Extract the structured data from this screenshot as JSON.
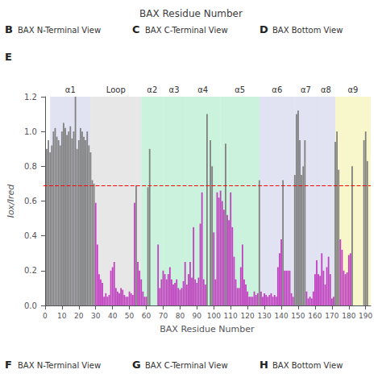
{
  "chart_data": {
    "type": "bar",
    "title": "BAX Residue Number",
    "xlabel": "BAX Residue Number",
    "ylabel": "Iox/Ired",
    "x": [
      1,
      2,
      3,
      4,
      5,
      6,
      7,
      8,
      9,
      10,
      11,
      12,
      13,
      14,
      15,
      16,
      17,
      18,
      19,
      20,
      21,
      22,
      23,
      24,
      25,
      26,
      27,
      28,
      29,
      30,
      31,
      32,
      33,
      34,
      35,
      36,
      37,
      38,
      39,
      40,
      41,
      42,
      43,
      44,
      45,
      46,
      47,
      48,
      49,
      50,
      51,
      52,
      53,
      54,
      55,
      56,
      57,
      58,
      59,
      60,
      61,
      62,
      63,
      64,
      65,
      66,
      67,
      68,
      69,
      70,
      71,
      72,
      73,
      74,
      75,
      76,
      77,
      78,
      79,
      80,
      81,
      82,
      83,
      84,
      85,
      86,
      87,
      88,
      89,
      90,
      91,
      92,
      93,
      94,
      95,
      96,
      97,
      98,
      99,
      100,
      101,
      102,
      103,
      104,
      105,
      106,
      107,
      108,
      109,
      110,
      111,
      112,
      113,
      114,
      115,
      116,
      117,
      118,
      119,
      120,
      121,
      122,
      123,
      124,
      125,
      126,
      127,
      128,
      129,
      130,
      131,
      132,
      133,
      134,
      135,
      136,
      137,
      138,
      139,
      140,
      141,
      142,
      143,
      144,
      145,
      146,
      147,
      148,
      149,
      150,
      151,
      152,
      153,
      154,
      155,
      156,
      157,
      158,
      159,
      160,
      161,
      162,
      163,
      164,
      165,
      166,
      167,
      168,
      169,
      170,
      171,
      172,
      173,
      174,
      175,
      176,
      177,
      178,
      179,
      180,
      181,
      182,
      183,
      184,
      185,
      186,
      187,
      188,
      189,
      190,
      191,
      192
    ],
    "values": [
      0.9,
      0.95,
      0.88,
      0.92,
      1.0,
      1.02,
      0.97,
      0.95,
      0.92,
      1.0,
      1.05,
      1.02,
      0.98,
      1.0,
      1.03,
      0.96,
      1.0,
      1.2,
      0.9,
      0.95,
      1.02,
      1.0,
      0.97,
      0.95,
      1.0,
      0.92,
      0.88,
      0.72,
      0.7,
      0.59,
      0.35,
      0.18,
      0.15,
      0.13,
      0.05,
      0.07,
      0.05,
      0.06,
      0.2,
      0.22,
      0.25,
      0.1,
      0.08,
      0.07,
      0.1,
      0.09,
      0.06,
      0.05,
      0.05,
      0.08,
      0.07,
      0.06,
      0.59,
      0.69,
      0.25,
      0.2,
      0.15,
      0.08,
      0.05,
      0.05,
      0.68,
      0.9,
      0.0,
      0.0,
      0.0,
      0.0,
      0.35,
      0.1,
      0.15,
      0.2,
      0.18,
      0.15,
      0.18,
      0.22,
      0.15,
      0.12,
      0.13,
      0.15,
      0.1,
      0.09,
      0.1,
      0.14,
      0.25,
      0.12,
      0.18,
      0.25,
      0.16,
      0.45,
      0.15,
      0.13,
      0.16,
      0.47,
      0.65,
      0.15,
      0.12,
      1.1,
      0.0,
      0.95,
      0.8,
      0.42,
      0.15,
      0.65,
      0.62,
      0.66,
      0.6,
      0.55,
      0.93,
      0.52,
      0.49,
      0.65,
      0.45,
      0.28,
      0.15,
      0.1,
      0.1,
      0.22,
      0.35,
      0.15,
      0.12,
      0.08,
      0.05,
      0.05,
      0.05,
      0.08,
      0.06,
      0.07,
      0.72,
      0.08,
      0.05,
      0.07,
      0.06,
      0.05,
      0.06,
      0.07,
      0.05,
      0.06,
      0.05,
      0.22,
      0.3,
      0.38,
      0.72,
      0.2,
      0.2,
      0.2,
      0.2,
      0.07,
      0.05,
      0.75,
      1.1,
      1.12,
      0.95,
      0.75,
      0.8,
      0.95,
      0.08,
      0.04,
      0.05,
      0.04,
      0.08,
      0.18,
      0.26,
      0.18,
      0.17,
      0.3,
      0.2,
      0.12,
      0.22,
      0.28,
      0.18,
      0.04,
      0.05,
      0.94,
      1.0,
      0.78,
      0.38,
      0.32,
      0.2,
      0.18,
      0.19,
      0.29,
      0.3,
      0.8,
      0.0,
      0.0,
      0.0,
      0.0,
      0.0,
      0.0,
      0.95,
      1.0,
      0.83,
      0.0
    ],
    "colors": [
      "#808080",
      "#808080",
      "#808080",
      "#808080",
      "#808080",
      "#808080",
      "#808080",
      "#808080",
      "#808080",
      "#808080",
      "#808080",
      "#808080",
      "#808080",
      "#808080",
      "#808080",
      "#808080",
      "#808080",
      "#808080",
      "#808080",
      "#808080",
      "#808080",
      "#808080",
      "#808080",
      "#808080",
      "#808080",
      "#808080",
      "#808080",
      "#808080",
      "#808080",
      "#c040c0",
      "#c040c0",
      "#c040c0",
      "#c040c0",
      "#c040c0",
      "#c040c0",
      "#c040c0",
      "#c040c0",
      "#c040c0",
      "#c040c0",
      "#c040c0",
      "#c040c0",
      "#c040c0",
      "#c040c0",
      "#c040c0",
      "#c040c0",
      "#c040c0",
      "#c040c0",
      "#c040c0",
      "#c040c0",
      "#c040c0",
      "#c040c0",
      "#c040c0",
      "#c040c0",
      "#808080",
      "#c040c0",
      "#c040c0",
      "#c040c0",
      "#c040c0",
      "#c040c0",
      "#c040c0",
      "#808080",
      "#808080",
      "#c040c0",
      "#c040c0",
      "#c040c0",
      "#c040c0",
      "#c040c0",
      "#c040c0",
      "#c040c0",
      "#c040c0",
      "#c040c0",
      "#c040c0",
      "#c040c0",
      "#c040c0",
      "#c040c0",
      "#c040c0",
      "#c040c0",
      "#c040c0",
      "#c040c0",
      "#c040c0",
      "#c040c0",
      "#c040c0",
      "#c040c0",
      "#c040c0",
      "#c040c0",
      "#c040c0",
      "#c040c0",
      "#c040c0",
      "#c040c0",
      "#c040c0",
      "#c040c0",
      "#c040c0",
      "#c040c0",
      "#c040c0",
      "#c040c0",
      "#808080",
      "#c040c0",
      "#808080",
      "#808080",
      "#c040c0",
      "#c040c0",
      "#c040c0",
      "#c040c0",
      "#c040c0",
      "#c040c0",
      "#c040c0",
      "#808080",
      "#c040c0",
      "#c040c0",
      "#c040c0",
      "#c040c0",
      "#c040c0",
      "#c040c0",
      "#c040c0",
      "#c040c0",
      "#c040c0",
      "#c040c0",
      "#c040c0",
      "#c040c0",
      "#c040c0",
      "#c040c0",
      "#c040c0",
      "#c040c0",
      "#c040c0",
      "#c040c0",
      "#c040c0",
      "#808080",
      "#c040c0",
      "#c040c0",
      "#c040c0",
      "#c040c0",
      "#c040c0",
      "#c040c0",
      "#c040c0",
      "#c040c0",
      "#c040c0",
      "#c040c0",
      "#c040c0",
      "#c040c0",
      "#c040c0",
      "#808080",
      "#c040c0",
      "#c040c0",
      "#c040c0",
      "#c040c0",
      "#c040c0",
      "#c040c0",
      "#808080",
      "#808080",
      "#808080",
      "#808080",
      "#808080",
      "#808080",
      "#808080",
      "#c040c0",
      "#c040c0",
      "#c040c0",
      "#c040c0",
      "#c040c0",
      "#c040c0",
      "#c040c0",
      "#c040c0",
      "#c040c0",
      "#c040c0",
      "#c040c0",
      "#c040c0",
      "#c040c0",
      "#c040c0",
      "#c040c0",
      "#c040c0",
      "#c040c0",
      "#808080",
      "#808080",
      "#808080",
      "#c040c0",
      "#c040c0",
      "#c040c0",
      "#c040c0",
      "#c040c0",
      "#c040c0",
      "#c040c0",
      "#808080",
      "#c040c0",
      "#c040c0",
      "#c040c0",
      "#c040c0",
      "#c040c0",
      "#c040c0",
      "#808080",
      "#808080",
      "#808080",
      "#c040c0"
    ],
    "xlim": [
      -1,
      193
    ],
    "xticks": [
      0,
      10,
      20,
      30,
      40,
      50,
      60,
      70,
      80,
      90,
      100,
      110,
      120,
      130,
      140,
      150,
      160,
      170,
      180,
      190
    ],
    "ylim": [
      0.0,
      1.2
    ],
    "yticks": [
      {
        "value": 0.0,
        "label": "0.0"
      },
      0.2,
      0.4,
      0.6,
      0.8,
      {
        "value": 1.0,
        "label": "1.0"
      },
      1.2
    ],
    "grid": false,
    "hline": {
      "y": 0.69,
      "color": "red",
      "line_style": "dashed"
    },
    "regions": [
      {
        "label": "α1",
        "xstart": 3,
        "xend": 27,
        "color": "#c8cce8"
      },
      {
        "label": "Loop",
        "xstart": 27,
        "xend": 57,
        "color": "#d4d4d4"
      },
      {
        "label": "α2",
        "xstart": 57,
        "xend": 70,
        "color": "#a0e8c0"
      },
      {
        "label": "α3",
        "xstart": 70,
        "xend": 83,
        "color": "#a0e8c0"
      },
      {
        "label": "α4",
        "xstart": 83,
        "xend": 104,
        "color": "#a0e8c0"
      },
      {
        "label": "α5",
        "xstart": 104,
        "xend": 127,
        "color": "#a0e8c0"
      },
      {
        "label": "α6",
        "xstart": 127,
        "xend": 148,
        "color": "#c8cce8"
      },
      {
        "label": "α7",
        "xstart": 148,
        "xend": 161,
        "color": "#c8cce8"
      },
      {
        "label": "α8",
        "xstart": 161,
        "xend": 172,
        "color": "#c8cce8"
      },
      {
        "label": "α9",
        "xstart": 172,
        "xend": 193,
        "color": "#f0f0a0"
      }
    ],
    "annotations": [
      {
        "label": "B",
        "text": "BAX N-Terminal View"
      },
      {
        "label": "C",
        "text": "BAX C-Terminal View"
      },
      {
        "label": "D",
        "text": "BAX Bottom View"
      },
      {
        "label": "E"
      },
      {
        "label": "F",
        "text": "BAX N-Terminal View"
      },
      {
        "label": "G",
        "text": "BAX C-Terminal View"
      },
      {
        "label": "H",
        "text": "BAX Bottom View"
      }
    ]
  }
}
